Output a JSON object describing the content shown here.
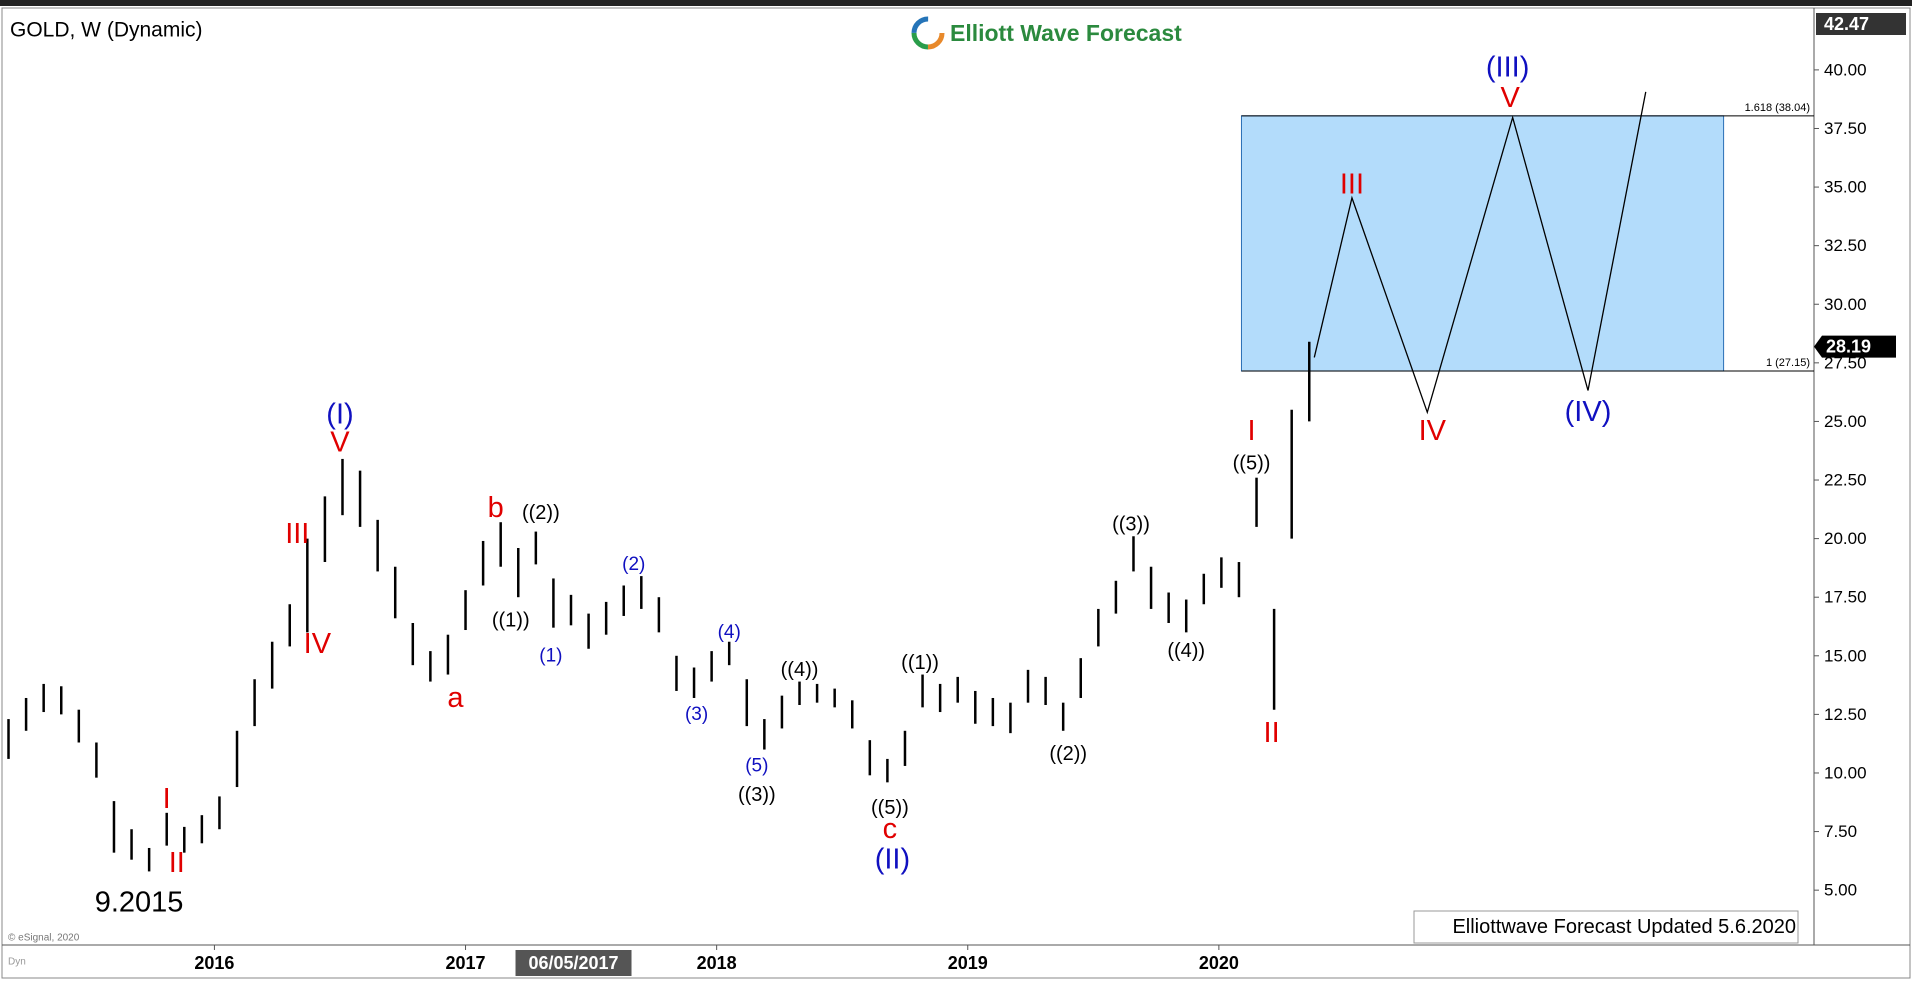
{
  "chart_data": {
    "type": "ohlc",
    "title": "GOLD, W (Dynamic)",
    "logo": "Elliott Wave Forecast",
    "footer": "Elliottwave Forecast Updated 5.6.2020",
    "source": "© eSignal, 2020",
    "mode_label": "Dyn",
    "color": "#000000",
    "x": [
      2015.18,
      2015.25,
      2015.32,
      2015.39,
      2015.46,
      2015.53,
      2015.6,
      2015.67,
      2015.74,
      2015.81,
      2015.88,
      2015.95,
      2016.02,
      2016.09,
      2016.16,
      2016.23,
      2016.3,
      2016.37,
      2016.44,
      2016.51,
      2016.58,
      2016.65,
      2016.72,
      2016.79,
      2016.86,
      2016.93,
      2017.0,
      2017.07,
      2017.14,
      2017.21,
      2017.28,
      2017.35,
      2017.42,
      2017.49,
      2017.56,
      2017.63,
      2017.7,
      2017.77,
      2017.84,
      2017.91,
      2017.98,
      2018.05,
      2018.12,
      2018.19,
      2018.26,
      2018.33,
      2018.4,
      2018.47,
      2018.54,
      2018.61,
      2018.68,
      2018.75,
      2018.82,
      2018.89,
      2018.96,
      2019.03,
      2019.1,
      2019.17,
      2019.24,
      2019.31,
      2019.38,
      2019.45,
      2019.52,
      2019.59,
      2019.66,
      2019.73,
      2019.8,
      2019.87,
      2019.94,
      2020.01,
      2020.08,
      2020.15,
      2020.22,
      2020.29,
      2020.36
    ],
    "high": [
      12.3,
      13.2,
      13.8,
      13.7,
      12.7,
      11.3,
      8.8,
      7.6,
      6.8,
      8.3,
      7.7,
      8.2,
      9.0,
      11.8,
      14.0,
      15.6,
      17.2,
      20.0,
      21.8,
      23.4,
      22.9,
      20.8,
      18.8,
      16.4,
      15.2,
      15.9,
      17.8,
      19.9,
      20.7,
      19.6,
      20.3,
      18.3,
      17.6,
      16.8,
      17.3,
      18.0,
      18.4,
      17.5,
      15.0,
      14.5,
      15.2,
      15.6,
      14.0,
      12.3,
      13.3,
      13.9,
      13.8,
      13.6,
      13.1,
      11.4,
      10.6,
      11.8,
      14.2,
      13.8,
      14.1,
      13.5,
      13.2,
      13.0,
      14.4,
      14.1,
      13.0,
      14.9,
      17.0,
      18.2,
      20.1,
      18.8,
      17.7,
      17.4,
      18.5,
      19.2,
      19.0,
      22.6,
      17.0,
      25.5,
      28.4
    ],
    "low": [
      10.6,
      11.8,
      12.6,
      12.5,
      11.3,
      9.8,
      6.6,
      6.3,
      5.8,
      6.9,
      6.6,
      7.0,
      7.6,
      9.4,
      12.0,
      13.6,
      15.4,
      16.0,
      19.0,
      21.0,
      20.5,
      18.6,
      16.6,
      14.6,
      13.9,
      14.2,
      16.1,
      18.0,
      18.8,
      17.5,
      18.9,
      16.2,
      16.3,
      15.3,
      15.9,
      16.7,
      17.0,
      16.0,
      13.5,
      13.2,
      13.9,
      14.6,
      12.0,
      11.0,
      11.9,
      12.9,
      13.0,
      12.8,
      11.9,
      9.9,
      9.6,
      10.3,
      12.8,
      12.6,
      13.0,
      12.1,
      12.0,
      11.7,
      13.0,
      12.9,
      11.8,
      13.2,
      15.4,
      16.8,
      18.6,
      17.0,
      16.4,
      16.0,
      17.2,
      17.9,
      17.5,
      20.5,
      12.7,
      20.0,
      25.0
    ],
    "last_price": 28.19,
    "axis_top_label": 42.47,
    "xlim": [
      2015.17,
      2022.37
    ],
    "xticks": [
      2016,
      2017,
      2018,
      2019,
      2020
    ],
    "cursor_date": {
      "value": 2017.43,
      "label": "06/05/2017"
    },
    "ylim": [
      2.66,
      42.47
    ],
    "yticks": [
      {
        "value": 5,
        "label": "5.00"
      },
      {
        "value": 7.5,
        "label": "7.50"
      },
      {
        "value": 10,
        "label": "10.00"
      },
      {
        "value": 12.5,
        "label": "12.50"
      },
      {
        "value": 15,
        "label": "15.00"
      },
      {
        "value": 17.5,
        "label": "17.50"
      },
      {
        "value": 20,
        "label": "20.00"
      },
      {
        "value": 22.5,
        "label": "22.50"
      },
      {
        "value": 25,
        "label": "25.00"
      },
      {
        "value": 27.5,
        "label": "27.50"
      },
      {
        "value": 30,
        "label": "30.00"
      },
      {
        "value": 32.5,
        "label": "32.50"
      },
      {
        "value": 35,
        "label": "35.00"
      },
      {
        "value": 37.5,
        "label": "37.50"
      },
      {
        "value": 40,
        "label": "40.00"
      }
    ],
    "fib_zone": {
      "x": [
        2020.09,
        2022.01
      ],
      "color": "#b3dcfb",
      "levels": [
        {
          "value": 38.04,
          "label": "1.618 (38.04)"
        },
        {
          "value": 27.15,
          "label": "1 (27.15)"
        }
      ]
    },
    "projection": {
      "x": [
        2020.38,
        2020.53,
        2020.83,
        2021.17,
        2021.47,
        2021.7
      ],
      "y": [
        27.73,
        34.54,
        25.39,
        37.97,
        26.32,
        39.06
      ]
    },
    "annotations": [
      {
        "text": "9.2015",
        "x": 2015.7,
        "y": 4.48,
        "color": "#000000"
      },
      {
        "text": "I",
        "x": 2015.81,
        "y": 8.9,
        "color": "#e00000"
      },
      {
        "text": "II",
        "x": 2015.85,
        "y": 6.15,
        "color": "#e00000"
      },
      {
        "text": "III",
        "x": 2016.33,
        "y": 20.2,
        "color": "#e00000"
      },
      {
        "text": "IV",
        "x": 2016.41,
        "y": 15.5,
        "color": "#e00000"
      },
      {
        "text": "V",
        "x": 2016.5,
        "y": 24.1,
        "color": "#e00000"
      },
      {
        "text": "(I)",
        "x": 2016.5,
        "y": 25.3,
        "color": "#1010c0"
      },
      {
        "text": "a",
        "x": 2016.96,
        "y": 13.2,
        "color": "#e00000"
      },
      {
        "text": "b",
        "x": 2017.12,
        "y": 21.3,
        "color": "#e00000"
      },
      {
        "text": "((2))",
        "x": 2017.3,
        "y": 21.1,
        "color": "#000000"
      },
      {
        "text": "((1))",
        "x": 2017.18,
        "y": 16.5,
        "color": "#000000"
      },
      {
        "text": "(1)",
        "x": 2017.34,
        "y": 15.0,
        "color": "#1010c0"
      },
      {
        "text": "(2)",
        "x": 2017.67,
        "y": 18.9,
        "color": "#1010c0"
      },
      {
        "text": "(3)",
        "x": 2017.92,
        "y": 12.5,
        "color": "#1010c0"
      },
      {
        "text": "(4)",
        "x": 2018.05,
        "y": 16.0,
        "color": "#1010c0"
      },
      {
        "text": "(5)",
        "x": 2018.16,
        "y": 10.3,
        "color": "#1010c0"
      },
      {
        "text": "((3))",
        "x": 2018.16,
        "y": 9.05,
        "color": "#000000"
      },
      {
        "text": "((4))",
        "x": 2018.33,
        "y": 14.4,
        "color": "#000000"
      },
      {
        "text": "((5))",
        "x": 2018.69,
        "y": 8.5,
        "color": "#000000"
      },
      {
        "text": "c",
        "x": 2018.69,
        "y": 7.6,
        "color": "#e00000"
      },
      {
        "text": "(II)",
        "x": 2018.7,
        "y": 6.3,
        "color": "#1010c0"
      },
      {
        "text": "((1))",
        "x": 2018.81,
        "y": 14.7,
        "color": "#000000"
      },
      {
        "text": "((2))",
        "x": 2019.4,
        "y": 10.8,
        "color": "#000000"
      },
      {
        "text": "((3))",
        "x": 2019.65,
        "y": 20.6,
        "color": "#000000"
      },
      {
        "text": "((4))",
        "x": 2019.87,
        "y": 15.2,
        "color": "#000000"
      },
      {
        "text": "((5))",
        "x": 2020.13,
        "y": 23.2,
        "color": "#000000"
      },
      {
        "text": "I",
        "x": 2020.13,
        "y": 24.6,
        "color": "#e00000"
      },
      {
        "text": "II",
        "x": 2020.21,
        "y": 11.7,
        "color": "#e00000"
      },
      {
        "text": "III",
        "x": 2020.53,
        "y": 35.1,
        "color": "#e00000"
      },
      {
        "text": "IV",
        "x": 2020.85,
        "y": 24.6,
        "color": "#e00000"
      },
      {
        "text": "(IV)",
        "x": 2021.47,
        "y": 25.4,
        "color": "#1010c0"
      },
      {
        "text": "V",
        "x": 2021.16,
        "y": 38.8,
        "color": "#e00000"
      },
      {
        "text": "(III)",
        "x": 2021.15,
        "y": 40.1,
        "color": "#1010c0"
      }
    ]
  }
}
